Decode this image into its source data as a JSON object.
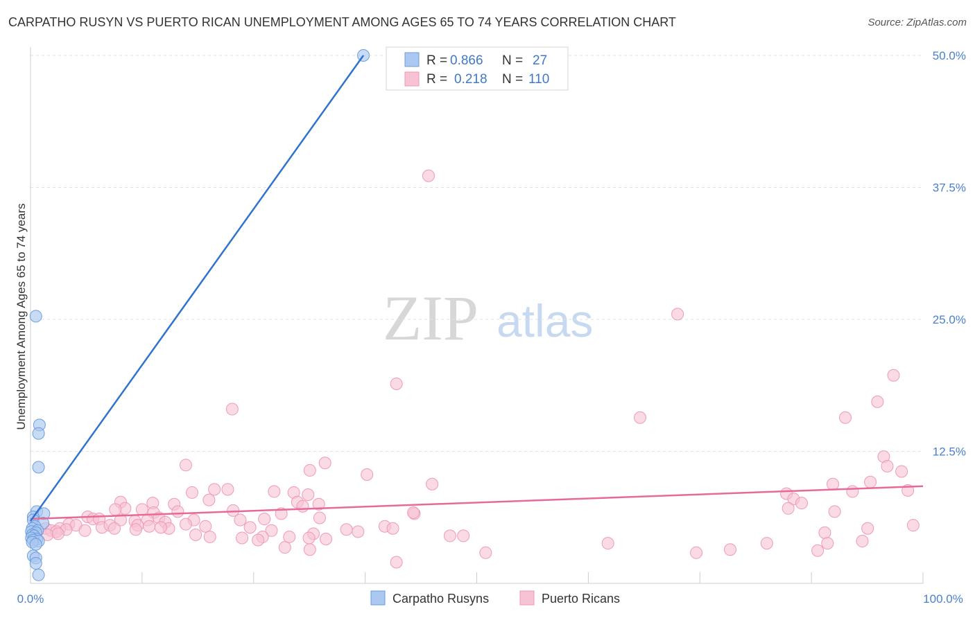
{
  "header": {
    "title": "CARPATHO RUSYN VS PUERTO RICAN UNEMPLOYMENT AMONG AGES 65 TO 74 YEARS CORRELATION CHART",
    "source": "Source: ZipAtlas.com"
  },
  "watermark": {
    "zip": "ZIP",
    "atlas": "atlas"
  },
  "legend_box": {
    "rows": [
      {
        "r_label": "R =",
        "r_value": "0.866",
        "n_label": "N =",
        "n_value": "27"
      },
      {
        "r_label": "R =",
        "r_value": "0.218",
        "n_label": "N =",
        "n_value": "110"
      }
    ]
  },
  "bottom_legend": [
    "Carpatho Rusyns",
    "Puerto Ricans"
  ],
  "chart_data": {
    "type": "scatter",
    "title": "CARPATHO RUSYN VS PUERTO RICAN UNEMPLOYMENT AMONG AGES 65 TO 74 YEARS CORRELATION CHART",
    "xlabel": "",
    "ylabel": "Unemployment Among Ages 65 to 74 years",
    "xlim": [
      0,
      100
    ],
    "ylim": [
      0,
      52
    ],
    "x_tick_labels": [
      "0.0%",
      "100.0%"
    ],
    "y_ticks": [
      12.5,
      25.0,
      37.5,
      50.0
    ],
    "y_tick_labels": [
      "12.5%",
      "25.0%",
      "37.5%",
      "50.0%"
    ],
    "grid": "horizontal dashed",
    "legend_position": "top-center",
    "colors": {
      "carpatho_fill": "#aac8f0",
      "carpatho_stroke": "#6b9de0",
      "carpatho_line": "#2f72d0",
      "puerto_fill": "#f7c2d3",
      "puerto_stroke": "#ef9ab5",
      "puerto_line": "#e8689a",
      "tick_blue": "#4a7fcf"
    },
    "series": [
      {
        "name": "Carpatho Rusyns",
        "r": 0.866,
        "n": 27,
        "trend": [
          [
            0,
            5.9
          ],
          [
            37.3,
            50.0
          ]
        ],
        "points": [
          [
            37.3,
            50.0
          ],
          [
            0.6,
            25.3
          ],
          [
            1.0,
            15.0
          ],
          [
            0.9,
            14.2
          ],
          [
            0.9,
            11.0
          ],
          [
            0.7,
            6.8
          ],
          [
            1.5,
            6.6
          ],
          [
            0.3,
            6.3
          ],
          [
            0.3,
            6.0
          ],
          [
            1.4,
            5.7
          ],
          [
            0.5,
            5.4
          ],
          [
            0.2,
            5.2
          ],
          [
            0.8,
            5.0
          ],
          [
            0.1,
            4.9
          ],
          [
            0.6,
            4.8
          ],
          [
            0.2,
            4.6
          ],
          [
            0.4,
            4.5
          ],
          [
            0.1,
            4.3
          ],
          [
            0.7,
            4.2
          ],
          [
            0.3,
            4.1
          ],
          [
            0.9,
            4.0
          ],
          [
            0.2,
            3.9
          ],
          [
            0.6,
            3.7
          ],
          [
            0.3,
            2.6
          ],
          [
            0.6,
            2.4
          ],
          [
            0.6,
            1.9
          ],
          [
            0.9,
            0.8
          ]
        ]
      },
      {
        "name": "Puerto Ricans",
        "r": 0.218,
        "n": 110,
        "trend": [
          [
            0,
            6.1
          ],
          [
            100,
            9.2
          ]
        ],
        "points": [
          [
            44.6,
            38.6
          ],
          [
            72.5,
            25.5
          ],
          [
            41.0,
            18.9
          ],
          [
            96.7,
            19.7
          ],
          [
            94.9,
            17.2
          ],
          [
            22.6,
            16.5
          ],
          [
            68.3,
            15.7
          ],
          [
            91.3,
            15.7
          ],
          [
            95.6,
            12.0
          ],
          [
            17.4,
            11.2
          ],
          [
            33.0,
            11.4
          ],
          [
            31.3,
            10.7
          ],
          [
            37.7,
            10.3
          ],
          [
            96.0,
            11.1
          ],
          [
            97.6,
            10.6
          ],
          [
            45.0,
            9.4
          ],
          [
            94.1,
            9.6
          ],
          [
            89.9,
            9.4
          ],
          [
            20.6,
            8.9
          ],
          [
            18.1,
            8.6
          ],
          [
            22.1,
            8.9
          ],
          [
            27.3,
            8.7
          ],
          [
            29.5,
            8.6
          ],
          [
            31.1,
            8.4
          ],
          [
            84.7,
            8.5
          ],
          [
            98.3,
            8.8
          ],
          [
            92.1,
            8.7
          ],
          [
            20.0,
            7.9
          ],
          [
            10.1,
            7.7
          ],
          [
            16.1,
            7.5
          ],
          [
            13.7,
            7.6
          ],
          [
            29.9,
            7.7
          ],
          [
            32.3,
            7.5
          ],
          [
            30.5,
            7.3
          ],
          [
            85.5,
            8.0
          ],
          [
            86.4,
            7.6
          ],
          [
            84.9,
            7.1
          ],
          [
            10.6,
            7.1
          ],
          [
            9.5,
            7.0
          ],
          [
            12.5,
            7.0
          ],
          [
            13.8,
            6.7
          ],
          [
            16.5,
            6.8
          ],
          [
            22.7,
            6.9
          ],
          [
            28.1,
            6.6
          ],
          [
            43.0,
            6.6
          ],
          [
            90.1,
            6.8
          ],
          [
            6.4,
            6.3
          ],
          [
            7.0,
            6.1
          ],
          [
            7.7,
            6.1
          ],
          [
            10.1,
            6.0
          ],
          [
            11.7,
            5.9
          ],
          [
            13.1,
            6.0
          ],
          [
            14.4,
            6.2
          ],
          [
            18.3,
            6.0
          ],
          [
            23.5,
            6.0
          ],
          [
            26.2,
            6.1
          ],
          [
            32.4,
            6.2
          ],
          [
            12.0,
            5.5
          ],
          [
            13.3,
            5.4
          ],
          [
            15.1,
            5.8
          ],
          [
            15.5,
            5.2
          ],
          [
            17.4,
            5.6
          ],
          [
            4.3,
            5.6
          ],
          [
            5.1,
            5.5
          ],
          [
            8.0,
            5.3
          ],
          [
            3.3,
            5.2
          ],
          [
            4.0,
            5.1
          ],
          [
            6.1,
            5.0
          ],
          [
            8.9,
            5.5
          ],
          [
            9.4,
            5.2
          ],
          [
            11.8,
            5.1
          ],
          [
            14.6,
            5.3
          ],
          [
            1.7,
            5.2
          ],
          [
            2.3,
            5.0
          ],
          [
            2.9,
            4.9
          ],
          [
            1.9,
            4.6
          ],
          [
            3.1,
            4.7
          ],
          [
            39.7,
            5.4
          ],
          [
            40.6,
            5.2
          ],
          [
            35.4,
            5.1
          ],
          [
            31.7,
            4.7
          ],
          [
            42.9,
            6.7
          ],
          [
            19.6,
            5.4
          ],
          [
            24.6,
            5.3
          ],
          [
            27.0,
            5.0
          ],
          [
            36.7,
            4.9
          ],
          [
            48.5,
            4.5
          ],
          [
            47.0,
            4.5
          ],
          [
            93.8,
            5.2
          ],
          [
            98.9,
            5.5
          ],
          [
            89.0,
            4.8
          ],
          [
            18.5,
            4.6
          ],
          [
            20.1,
            4.4
          ],
          [
            23.7,
            4.3
          ],
          [
            26.0,
            4.4
          ],
          [
            29.0,
            4.4
          ],
          [
            31.2,
            4.3
          ],
          [
            33.1,
            4.2
          ],
          [
            25.5,
            4.1
          ],
          [
            93.2,
            4.0
          ],
          [
            89.3,
            3.8
          ],
          [
            82.5,
            3.8
          ],
          [
            64.7,
            3.8
          ],
          [
            28.5,
            3.4
          ],
          [
            31.3,
            3.2
          ],
          [
            78.4,
            3.2
          ],
          [
            88.2,
            3.1
          ],
          [
            74.6,
            2.9
          ],
          [
            51.0,
            2.9
          ],
          [
            41.0,
            2.0
          ]
        ]
      }
    ]
  }
}
